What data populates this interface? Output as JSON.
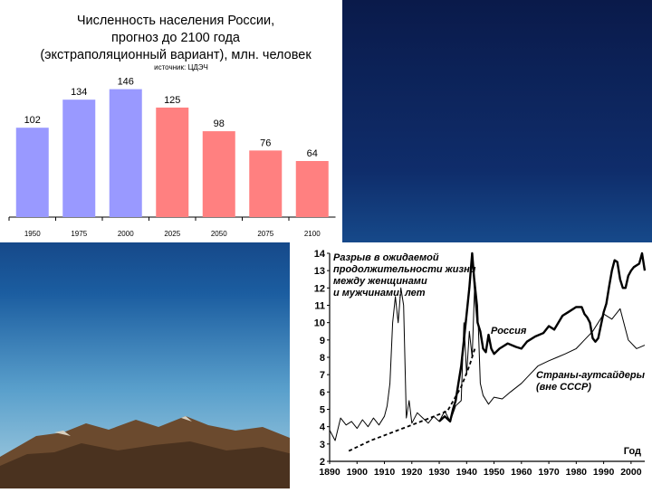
{
  "chart_data": [
    {
      "type": "bar",
      "title": "Численность населения России,\nпрогноз до 2100 года\n(экстраполяционный вариант), млн. человек",
      "subtitle": "источник: ЦДЭЧ",
      "categories": [
        "1950",
        "1975",
        "2000",
        "2025",
        "2050",
        "2075",
        "2100"
      ],
      "values": [
        102,
        134,
        146,
        125,
        98,
        76,
        64
      ],
      "bar_colors": [
        "#9999ff",
        "#9999ff",
        "#9999ff",
        "#ff8080",
        "#ff8080",
        "#ff8080",
        "#ff8080"
      ],
      "ylim": [
        0,
        160
      ],
      "grid": false
    },
    {
      "type": "line",
      "annotation": "Разрыв в ожидаемой продолжительности жизни между женщинами и мужчинами, лет",
      "xlabel": "Год",
      "xlim": [
        1890,
        2005
      ],
      "ylim": [
        2,
        14
      ],
      "x_ticks": [
        1890,
        1900,
        1910,
        1920,
        1930,
        1940,
        1950,
        1960,
        1970,
        1980,
        1990,
        2000
      ],
      "y_ticks": [
        2,
        3,
        4,
        5,
        6,
        7,
        8,
        9,
        10,
        11,
        12,
        13,
        14
      ],
      "series": [
        {
          "name": "Россия",
          "style": "bold",
          "x": [
            1938,
            1940,
            1941,
            1942,
            1943,
            1944,
            1945,
            1946,
            1947,
            1948,
            1949,
            1950,
            1952,
            1955,
            1958,
            1960,
            1962,
            1965,
            1968,
            1970,
            1972,
            1975,
            1977,
            1980,
            1982,
            1983,
            1984,
            1985,
            1986,
            1987,
            1988,
            1990,
            1991,
            1992,
            1993,
            1994,
            1995,
            1996,
            1997,
            1998,
            1999,
            2000,
            2001,
            2002,
            2003,
            2004,
            2005
          ],
          "y": [
            7.5,
            10.5,
            12.0,
            14.0,
            12.0,
            10.0,
            9.5,
            8.5,
            8.3,
            9.3,
            8.5,
            8.2,
            8.5,
            8.8,
            8.6,
            8.5,
            8.9,
            9.2,
            9.4,
            9.8,
            9.6,
            10.4,
            10.6,
            10.9,
            10.9,
            10.5,
            10.3,
            10.0,
            9.1,
            8.9,
            9.1,
            10.6,
            11.1,
            12.1,
            13.0,
            13.6,
            13.5,
            12.5,
            12.0,
            12.0,
            12.7,
            13.0,
            13.2,
            13.3,
            13.4,
            14.0,
            13.0
          ]
        },
        {
          "name": "",
          "style": "dashed",
          "x": [
            1897,
            1905,
            1915,
            1925,
            1933,
            1938,
            1941,
            1943
          ],
          "y": [
            2.6,
            3.2,
            3.8,
            4.4,
            4.9,
            6.3,
            7.5,
            8.5
          ]
        },
        {
          "name": "",
          "style": "bold",
          "x": [
            1930,
            1932,
            1934,
            1935,
            1936,
            1937,
            1938
          ],
          "y": [
            4.3,
            4.6,
            4.3,
            5.0,
            5.5,
            6.5,
            7.5
          ]
        },
        {
          "name": "Страны-аутсайдеры (вне СССР)",
          "style": "thin",
          "x": [
            1890,
            1892,
            1894,
            1896,
            1898,
            1900,
            1902,
            1904,
            1906,
            1908,
            1910,
            1911,
            1912,
            1913,
            1914,
            1915,
            1916,
            1917,
            1918,
            1919,
            1920,
            1922,
            1924,
            1926,
            1928,
            1930,
            1932,
            1934,
            1936,
            1938,
            1939,
            1940,
            1941,
            1942,
            1943,
            1944,
            1945,
            1946,
            1948,
            1950,
            1953,
            1956,
            1960,
            1963,
            1966,
            1970,
            1973,
            1976,
            1980,
            1983,
            1986,
            1990,
            1993,
            1996,
            1999,
            2002,
            2005
          ],
          "y": [
            3.8,
            3.2,
            4.5,
            4.1,
            4.3,
            3.9,
            4.4,
            4.0,
            4.5,
            4.1,
            4.6,
            5.2,
            6.5,
            10.0,
            11.5,
            10.0,
            12.0,
            11.0,
            4.5,
            5.5,
            4.2,
            4.8,
            4.5,
            4.2,
            4.6,
            4.3,
            4.9,
            4.3,
            5.2,
            5.5,
            10.0,
            7.0,
            9.5,
            8.0,
            12.5,
            11.0,
            6.5,
            5.8,
            5.3,
            5.7,
            5.6,
            6.0,
            6.5,
            7.0,
            7.5,
            7.8,
            8.0,
            8.2,
            8.5,
            9.0,
            9.5,
            10.5,
            10.2,
            10.8,
            9.0,
            8.5,
            8.7
          ]
        }
      ]
    }
  ]
}
